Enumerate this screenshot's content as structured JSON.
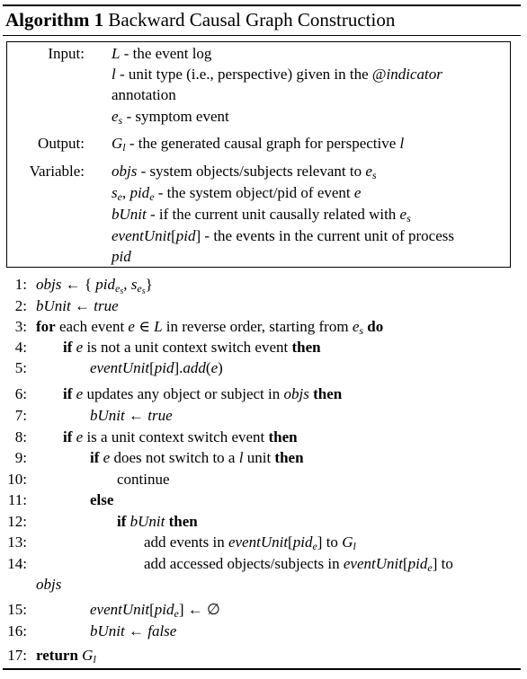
{
  "algorithm": {
    "label": "Algorithm 1",
    "title": "Backward Causal Graph Construction"
  },
  "io": {
    "input_label": "Input:",
    "output_label": "Output:",
    "variable_label": "Variable:",
    "input_L_text": " - the event log",
    "input_l_text": " - unit type (i.e., perspective) given in the @",
    "input_l_indicator": "indicator",
    "input_l_cont": "annotation",
    "input_es_text": " - symptom event",
    "output_text": " - the generated causal graph for perspective ",
    "var_objs_text": " - system objects/subjects relevant to ",
    "var_se_text": " - the system object/pid of event ",
    "var_bunit_text": " - if the current unit causally related with ",
    "var_eventunit_text": " - the events in the current unit of process",
    "var_eventunit_cont": "pid"
  },
  "lines": {
    "n1": "1:",
    "n2": "2:",
    "n3": "3:",
    "n4": "4:",
    "n5": "5:",
    "n6": "6:",
    "n7": "7:",
    "n8": "8:",
    "n9": "9:",
    "n10": "10:",
    "n11": "11:",
    "n12": "12:",
    "n13": "13:",
    "n14": "14:",
    "n15": "15:",
    "n16": "16:",
    "n17": "17:",
    "l3_for": "for",
    "l3_text": " each event ",
    "l3_text2": " in reverse order, starting from ",
    "l3_do": "do",
    "l4_if": "if",
    "l4_text": " is not a unit context switch event ",
    "then": "then",
    "l6_text": " updates any object or subject in ",
    "l8_text": " is a unit context switch event ",
    "l9_text": " does not switch to a ",
    "l9_text2": " unit ",
    "l10_text": "continue",
    "l11_text": "else",
    "l13_text": "add events in ",
    "l13_to": " to ",
    "l14_text": "add accessed objects/subjects in ",
    "l14_to": " to",
    "l17_return": "return"
  }
}
